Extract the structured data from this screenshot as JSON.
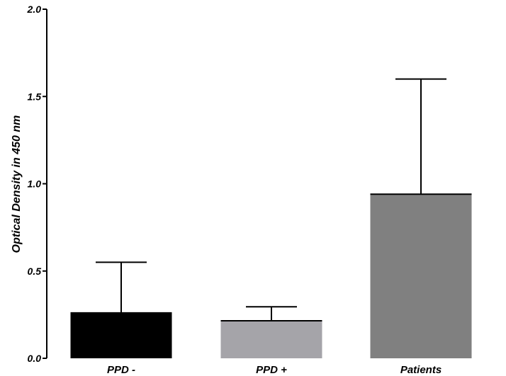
{
  "chart_data": {
    "type": "bar",
    "title": "",
    "xlabel": "",
    "ylabel": "Optical Density in 450 nm",
    "ylim": [
      0,
      2.0
    ],
    "yticks": [
      0.0,
      0.5,
      1.0,
      1.5,
      2.0
    ],
    "ytick_labels": [
      "0.0",
      "0.5",
      "1.0",
      "1.5",
      "2.0"
    ],
    "grid": false,
    "legend": "none",
    "categories": [
      "PPD -",
      "PPD +",
      "Patients"
    ],
    "values": [
      0.26,
      0.215,
      0.94
    ],
    "error_upper": [
      0.55,
      0.295,
      1.6
    ],
    "colors": [
      "#000000",
      "#a5a4a9",
      "#808080"
    ]
  }
}
